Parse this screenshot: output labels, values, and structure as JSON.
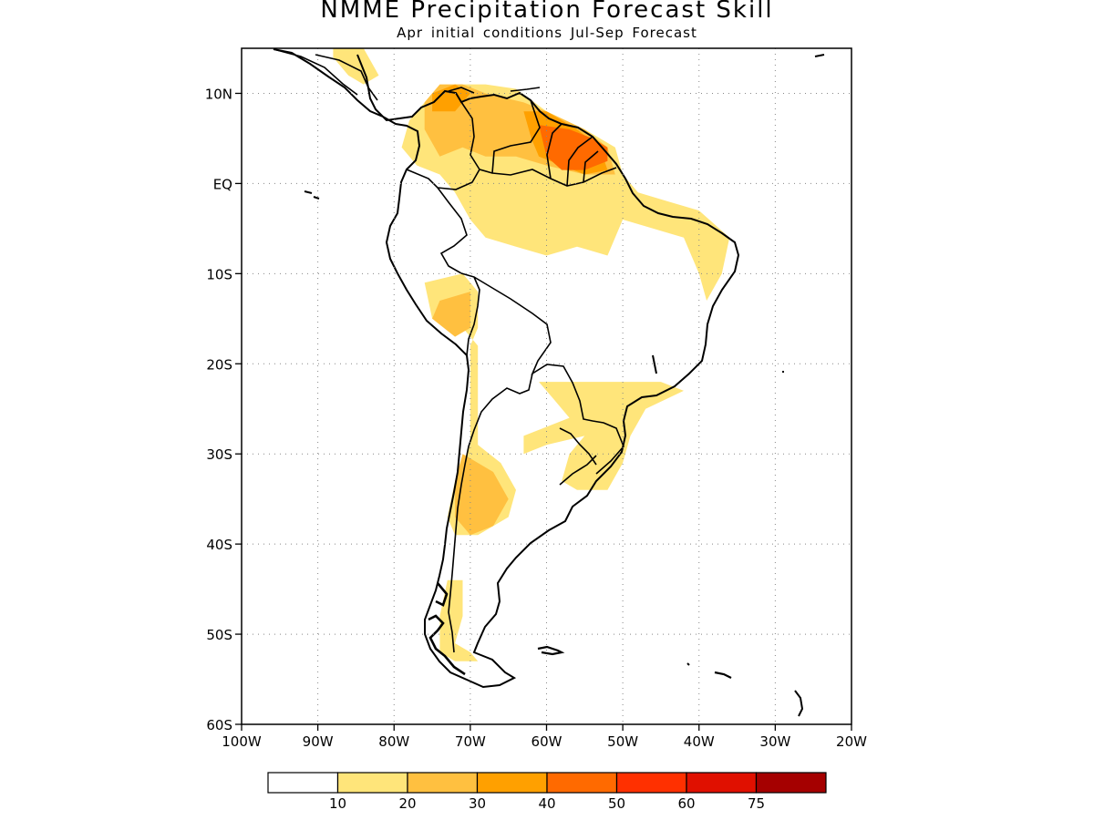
{
  "title": "NMME Precipitation Forecast Skill",
  "subtitle": "Apr initial conditions  Jul-Sep Forecast",
  "map": {
    "lon_range": [
      -100,
      -20
    ],
    "lat_range": [
      -60,
      15
    ],
    "lat_ticks": [
      {
        "lat": 10,
        "label": "10N"
      },
      {
        "lat": 0,
        "label": "EQ"
      },
      {
        "lat": -10,
        "label": "10S"
      },
      {
        "lat": -20,
        "label": "20S"
      },
      {
        "lat": -30,
        "label": "30S"
      },
      {
        "lat": -40,
        "label": "40S"
      },
      {
        "lat": -50,
        "label": "50S"
      },
      {
        "lat": -60,
        "label": "60S"
      }
    ],
    "lon_ticks": [
      {
        "lon": -100,
        "label": "100W"
      },
      {
        "lon": -90,
        "label": "90W"
      },
      {
        "lon": -80,
        "label": "80W"
      },
      {
        "lon": -70,
        "label": "70W"
      },
      {
        "lon": -60,
        "label": "60W"
      },
      {
        "lon": -50,
        "label": "50W"
      },
      {
        "lon": -40,
        "label": "40W"
      },
      {
        "lon": -30,
        "label": "30W"
      },
      {
        "lon": -20,
        "label": "20W"
      }
    ],
    "grid": true
  },
  "colorbar": {
    "colors": [
      "#ffffff",
      "#ffe57a",
      "#ffc040",
      "#ffa000",
      "#ff6a00",
      "#ff3000",
      "#e01000",
      "#a50000"
    ],
    "labels": [
      "10",
      "20",
      "30",
      "40",
      "50",
      "60",
      "75"
    ]
  },
  "skill_regions": [
    {
      "level": 1,
      "points": [
        [
          -78,
          7
        ],
        [
          -75,
          10
        ],
        [
          -72,
          11
        ],
        [
          -68,
          11
        ],
        [
          -64,
          10.5
        ],
        [
          -60,
          8
        ],
        [
          -55,
          6
        ],
        [
          -51,
          4
        ],
        [
          -50,
          1
        ],
        [
          -48,
          -1
        ],
        [
          -44,
          -2
        ],
        [
          -40,
          -3
        ],
        [
          -36,
          -6
        ],
        [
          -37,
          -10
        ],
        [
          -39,
          -13
        ],
        [
          -40,
          -10
        ],
        [
          -42,
          -6
        ],
        [
          -46,
          -5
        ],
        [
          -50,
          -4
        ],
        [
          -52,
          -8
        ],
        [
          -56,
          -7
        ],
        [
          -60,
          -8
        ],
        [
          -64,
          -7
        ],
        [
          -68,
          -6
        ],
        [
          -70,
          -4
        ],
        [
          -72,
          -1
        ],
        [
          -74,
          1
        ],
        [
          -77,
          2
        ],
        [
          -79,
          4
        ]
      ]
    },
    {
      "level": 1,
      "points": [
        [
          -76,
          -11
        ],
        [
          -71,
          -10
        ],
        [
          -69,
          -12
        ],
        [
          -69,
          -16
        ],
        [
          -70,
          -18
        ],
        [
          -70,
          -24
        ],
        [
          -70,
          -29
        ],
        [
          -72,
          -33
        ],
        [
          -73,
          -37
        ],
        [
          -72,
          -39
        ],
        [
          -69,
          -39
        ],
        [
          -65,
          -37
        ],
        [
          -64,
          -34
        ],
        [
          -66,
          -31
        ],
        [
          -69,
          -29
        ],
        [
          -69,
          -24
        ],
        [
          -69,
          -18
        ],
        [
          -71,
          -16
        ],
        [
          -75,
          -15
        ]
      ]
    },
    {
      "level": 1,
      "points": [
        [
          -61,
          -22
        ],
        [
          -55,
          -22
        ],
        [
          -50,
          -22
        ],
        [
          -45,
          -22
        ],
        [
          -42,
          -23
        ],
        [
          -47,
          -25
        ],
        [
          -49,
          -28
        ],
        [
          -50,
          -31
        ],
        [
          -52,
          -34
        ],
        [
          -56,
          -34
        ],
        [
          -58,
          -33
        ],
        [
          -57,
          -30
        ],
        [
          -55,
          -28
        ],
        [
          -60,
          -29
        ],
        [
          -63,
          -30
        ],
        [
          -63,
          -28
        ],
        [
          -57,
          -26
        ],
        [
          -59,
          -24
        ]
      ]
    },
    {
      "level": 1,
      "points": [
        [
          -73,
          -44
        ],
        [
          -71,
          -44
        ],
        [
          -71,
          -48
        ],
        [
          -72,
          -51
        ],
        [
          -70,
          -52
        ],
        [
          -69,
          -53
        ],
        [
          -72,
          -53
        ],
        [
          -74,
          -52
        ],
        [
          -74,
          -48
        ]
      ]
    },
    {
      "level": 1,
      "points": [
        [
          -88,
          16
        ],
        [
          -84,
          15
        ],
        [
          -82,
          12
        ],
        [
          -84,
          11
        ],
        [
          -86,
          12
        ],
        [
          -88,
          14
        ]
      ]
    },
    {
      "level": 2,
      "points": [
        [
          -76,
          9
        ],
        [
          -74,
          11
        ],
        [
          -71,
          11
        ],
        [
          -68,
          10
        ],
        [
          -63,
          9
        ],
        [
          -60,
          8
        ],
        [
          -55,
          6
        ],
        [
          -52,
          4
        ],
        [
          -51,
          1
        ],
        [
          -55,
          1
        ],
        [
          -60,
          2
        ],
        [
          -64,
          3
        ],
        [
          -68,
          3
        ],
        [
          -71,
          4
        ],
        [
          -74,
          3
        ],
        [
          -76,
          6
        ]
      ]
    },
    {
      "level": 2,
      "points": [
        [
          -74,
          -13
        ],
        [
          -70,
          -12
        ],
        [
          -70,
          -16
        ],
        [
          -72,
          -17
        ],
        [
          -75,
          -15
        ]
      ]
    },
    {
      "level": 2,
      "points": [
        [
          -71,
          -30
        ],
        [
          -67,
          -32
        ],
        [
          -65,
          -35
        ],
        [
          -67,
          -38
        ],
        [
          -70,
          -39
        ],
        [
          -72,
          -37
        ],
        [
          -72,
          -33
        ]
      ]
    },
    {
      "level": 3,
      "points": [
        [
          -75,
          10
        ],
        [
          -72,
          11
        ],
        [
          -70,
          10
        ],
        [
          -72,
          8
        ],
        [
          -75,
          8
        ]
      ]
    },
    {
      "level": 3,
      "points": [
        [
          -63,
          8
        ],
        [
          -60,
          8
        ],
        [
          -56,
          6
        ],
        [
          -53,
          4
        ],
        [
          -52,
          1.5
        ],
        [
          -55,
          1
        ],
        [
          -58,
          2
        ],
        [
          -61,
          3
        ],
        [
          -62,
          5
        ]
      ]
    },
    {
      "level": 4,
      "points": [
        [
          -61,
          6.5
        ],
        [
          -57,
          6
        ],
        [
          -54,
          5
        ],
        [
          -52,
          4
        ],
        [
          -52,
          2.5
        ],
        [
          -55,
          1.5
        ],
        [
          -58,
          1.5
        ],
        [
          -60,
          3
        ]
      ]
    }
  ]
}
